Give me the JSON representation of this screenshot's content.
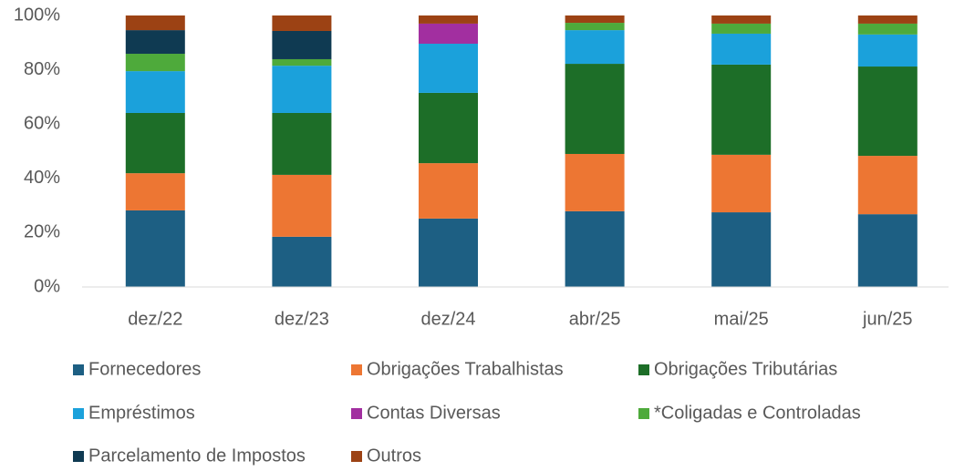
{
  "chart_data": {
    "type": "stacked_bar",
    "categories": [
      "dez/22",
      "dez/23",
      "dez/24",
      "abr/25",
      "mai/25",
      "jun/25"
    ],
    "series": [
      {
        "name": "Fornecedores",
        "color": "#1d5f83",
        "values": [
          28.2,
          18.5,
          25.2,
          27.9,
          27.5,
          26.8
        ]
      },
      {
        "name": "Obrigações Trabalhistas",
        "color": "#ed7633",
        "values": [
          13.7,
          22.8,
          20.4,
          21.1,
          21.2,
          21.5
        ]
      },
      {
        "name": "Obrigações Tributárias",
        "color": "#1d6e28",
        "values": [
          22.2,
          22.8,
          25.9,
          33.2,
          33.2,
          32.9
        ]
      },
      {
        "name": "Empréstimos",
        "color": "#1ba1db",
        "values": [
          15.4,
          17.4,
          18.1,
          12.4,
          11.4,
          11.8
        ]
      },
      {
        "name": "Contas Diversas",
        "color": "#a22fa0",
        "values": [
          0,
          0,
          7.4,
          0,
          0,
          0
        ]
      },
      {
        "name": "*Coligadas e Controladas",
        "color": "#4eaa3b",
        "values": [
          6.4,
          2.4,
          0,
          2.7,
          3.7,
          4.0
        ]
      },
      {
        "name": "Parcelamento de Impostos",
        "color": "#0f3a52",
        "values": [
          8.7,
          10.4,
          0,
          0,
          0,
          0
        ]
      },
      {
        "name": "Outros",
        "color": "#9c4214",
        "values": [
          5.4,
          5.7,
          3.0,
          2.7,
          3.0,
          3.0
        ]
      }
    ],
    "ylim": [
      0,
      100
    ],
    "yticks": [
      {
        "value": 0,
        "label": "0%"
      },
      {
        "value": 20,
        "label": "20%"
      },
      {
        "value": 40,
        "label": "40%"
      },
      {
        "value": 60,
        "label": "60%"
      },
      {
        "value": 80,
        "label": "80%"
      },
      {
        "value": 100,
        "label": "100%"
      }
    ],
    "grid": false,
    "legend": "bottom"
  }
}
